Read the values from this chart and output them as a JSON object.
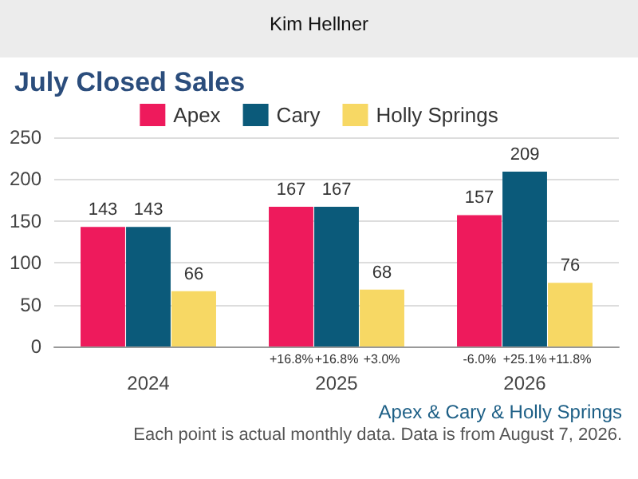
{
  "chart_data": {
    "type": "bar",
    "title": "July Closed Sales",
    "subtitle": "Apex & Cary & Holly Springs",
    "categories": [
      "2024",
      "2025",
      "2026"
    ],
    "series": [
      {
        "name": "Apex",
        "color": "#ee1a5c",
        "values": [
          143,
          167,
          157
        ]
      },
      {
        "name": "Cary",
        "color": "#0b5a7a",
        "values": [
          143,
          167,
          209
        ]
      },
      {
        "name": "Holly Springs",
        "color": "#f7d864",
        "values": [
          66,
          68,
          76
        ]
      }
    ],
    "ylim": [
      0,
      250
    ],
    "yticks": [
      0,
      50,
      100,
      150,
      200,
      250
    ],
    "grid": "y",
    "legend": "top",
    "data_labels": true,
    "annotations": [
      "Kim Hellner",
      "Each point is actual monthly data. Data is from August 7, 2026.",
      "+16.8%",
      "+16.8%",
      "+3.0%",
      "-6.0%",
      "+25.1%",
      "+11.8%"
    ]
  }
}
